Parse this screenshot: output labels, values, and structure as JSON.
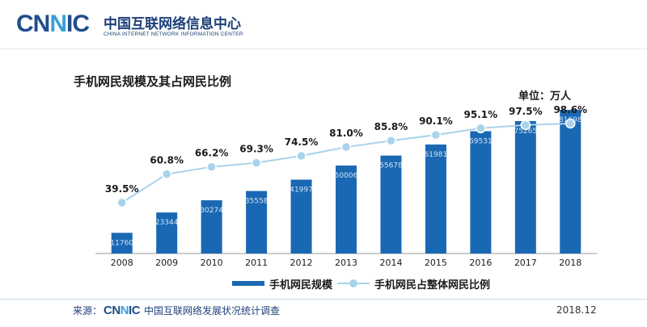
{
  "header": {
    "logo_prefix": "CN",
    "logo_accent": "N",
    "logo_suffix": "IC",
    "org_name_cn": "中国互联网络信息中心",
    "org_name_en": "CHINA INTERNET NETWORK INFORMATION CENTER"
  },
  "unit_label": "单位：万人",
  "legend": {
    "bar_label": "手机网民规模",
    "line_label": "手机网民占整体网民比例"
  },
  "footer": {
    "source_label": "来源：",
    "source_text": "中国互联网络发展状况统计调查",
    "date": "2018.12"
  },
  "colors": {
    "bar": "#1a68b3",
    "bar_label": "#cfe3f5",
    "line": "#a9d3ea",
    "marker": "#a9d3ea",
    "percent_label": "#1b1b1b",
    "axis": "#999999"
  },
  "chart_data": {
    "type": "bar",
    "title": "手机网民规模及其占网民比例",
    "categories": [
      "2008",
      "2009",
      "2010",
      "2011",
      "2012",
      "2013",
      "2014",
      "2015",
      "2016",
      "2017",
      "2018"
    ],
    "series": [
      {
        "name": "手机网民规模",
        "type": "bar",
        "values": [
          11760,
          23344,
          30274,
          35558,
          41997,
          50006,
          55678,
          61981,
          69531,
          75265,
          81698
        ],
        "labels": [
          "11760",
          "23344",
          "30274",
          "35558",
          "41997",
          "50006",
          "55678",
          "61981",
          "69531",
          "75265",
          "81698"
        ]
      },
      {
        "name": "手机网民占整体网民比例",
        "type": "line",
        "values": [
          39.5,
          60.8,
          66.2,
          69.3,
          74.5,
          81.0,
          85.8,
          90.1,
          95.1,
          97.5,
          98.6
        ],
        "labels": [
          "39.5%",
          "60.8%",
          "66.2%",
          "69.3%",
          "74.5%",
          "81.0%",
          "85.8%",
          "90.1%",
          "95.1%",
          "97.5%",
          "98.6%"
        ]
      }
    ],
    "xlabel": "",
    "ylabel": "",
    "grid": false,
    "legend_position": "bottom"
  }
}
